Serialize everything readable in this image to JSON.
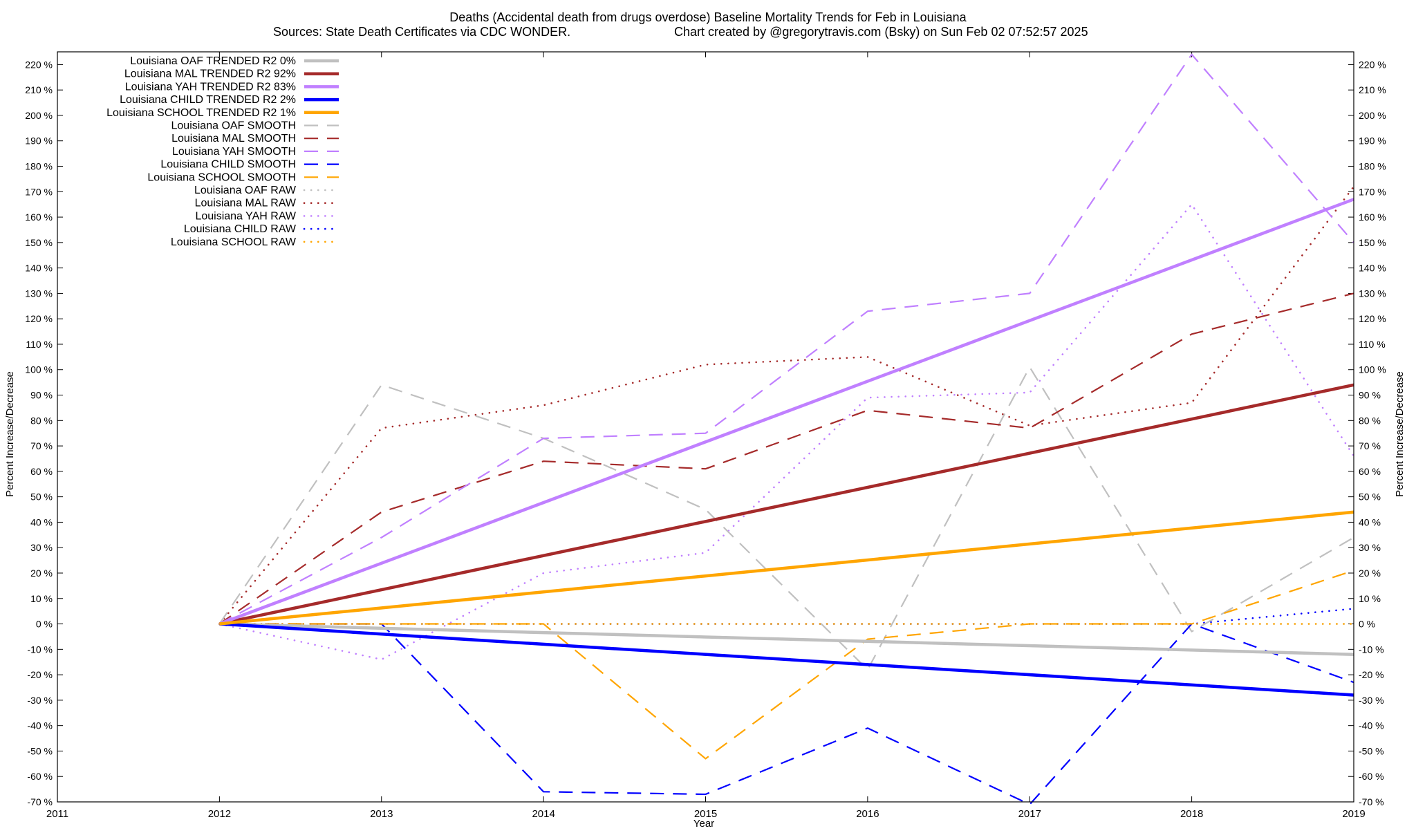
{
  "chart_data": {
    "type": "line",
    "title": "Deaths (Accidental death from drugs overdose)  Baseline Mortality Trends for Feb in Louisiana",
    "subtitle_left": "Sources: State Death Certificates via CDC WONDER.",
    "subtitle_right": "Chart created by @gregorytravis.com (Bsky) on Sun Feb 02 07:52:57 2025",
    "xlabel": "Year",
    "ylabel_left": "Percent Increase/Decrease",
    "ylabel_right": "Percent Increase/Decrease",
    "xlim": [
      2011,
      2019
    ],
    "ylim": [
      -70,
      225
    ],
    "x_ticks": [
      2011,
      2012,
      2013,
      2014,
      2015,
      2016,
      2017,
      2018,
      2019
    ],
    "y_ticks": [
      -70,
      -60,
      -50,
      -40,
      -30,
      -20,
      -10,
      0,
      10,
      20,
      30,
      40,
      50,
      60,
      70,
      80,
      90,
      100,
      110,
      120,
      130,
      140,
      150,
      160,
      170,
      180,
      190,
      200,
      210,
      220
    ],
    "y_tick_suffix": " %",
    "grid": false,
    "legend_position": "top-left",
    "series": [
      {
        "name": "Louisiana OAF TRENDED R2  0%",
        "style": "trend",
        "color": "#c0c0c0",
        "x": [
          2012,
          2019
        ],
        "y": [
          0,
          -12
        ]
      },
      {
        "name": "Louisiana MAL TRENDED R2  92%",
        "style": "trend",
        "color": "#a52a2a",
        "x": [
          2012,
          2019
        ],
        "y": [
          0,
          94
        ]
      },
      {
        "name": "Louisiana YAH TRENDED R2  83%",
        "style": "trend",
        "color": "#c080ff",
        "x": [
          2012,
          2019
        ],
        "y": [
          0,
          167
        ]
      },
      {
        "name": "Louisiana CHILD TRENDED R2  2%",
        "style": "trend",
        "color": "#0000ff",
        "x": [
          2012,
          2019
        ],
        "y": [
          0,
          -28
        ]
      },
      {
        "name": "Louisiana SCHOOL TRENDED R2  1%",
        "style": "trend",
        "color": "#ffa500",
        "x": [
          2012,
          2019
        ],
        "y": [
          0,
          44
        ]
      },
      {
        "name": "Louisiana OAF SMOOTH",
        "style": "smooth",
        "color": "#c0c0c0",
        "x": [
          2012,
          2013,
          2014,
          2015,
          2016,
          2017,
          2018,
          2019
        ],
        "y": [
          0,
          94,
          73,
          45,
          -18,
          101,
          -3,
          34
        ]
      },
      {
        "name": "Louisiana MAL SMOOTH",
        "style": "smooth",
        "color": "#a52a2a",
        "x": [
          2012,
          2013,
          2014,
          2015,
          2016,
          2017,
          2018,
          2019
        ],
        "y": [
          0,
          44,
          64,
          61,
          84,
          77,
          114,
          130
        ]
      },
      {
        "name": "Louisiana YAH SMOOTH",
        "style": "smooth",
        "color": "#c080ff",
        "x": [
          2012,
          2013,
          2014,
          2015,
          2016,
          2017,
          2018,
          2019
        ],
        "y": [
          0,
          34,
          73,
          75,
          123,
          130,
          224,
          150
        ]
      },
      {
        "name": "Louisiana CHILD SMOOTH",
        "style": "smooth",
        "color": "#0000ff",
        "x": [
          2012,
          2013,
          2014,
          2015,
          2016,
          2017,
          2018,
          2019
        ],
        "y": [
          0,
          0,
          -66,
          -67,
          -41,
          -71,
          0,
          -23
        ]
      },
      {
        "name": "Louisiana SCHOOL SMOOTH",
        "style": "smooth",
        "color": "#ffa500",
        "x": [
          2012,
          2013,
          2014,
          2015,
          2016,
          2017,
          2018,
          2019
        ],
        "y": [
          0,
          0,
          0,
          -53,
          -6,
          0,
          0,
          21
        ]
      },
      {
        "name": "Louisiana OAF RAW",
        "style": "raw",
        "color": "#c0c0c0",
        "x": [
          2012,
          2013,
          2014,
          2015,
          2016,
          2017,
          2018,
          2019
        ],
        "y": [
          0,
          0,
          0,
          0,
          0,
          0,
          0,
          0
        ]
      },
      {
        "name": "Louisiana MAL RAW",
        "style": "raw",
        "color": "#a52a2a",
        "x": [
          2012,
          2013,
          2014,
          2015,
          2016,
          2017,
          2018,
          2019
        ],
        "y": [
          0,
          77,
          86,
          102,
          105,
          78,
          87,
          172
        ]
      },
      {
        "name": "Louisiana YAH RAW",
        "style": "raw",
        "color": "#c080ff",
        "x": [
          2012,
          2013,
          2014,
          2015,
          2016,
          2017,
          2018,
          2019
        ],
        "y": [
          0,
          -14,
          20,
          28,
          89,
          91,
          165,
          66
        ]
      },
      {
        "name": "Louisiana CHILD RAW",
        "style": "raw",
        "color": "#0000ff",
        "x": [
          2012,
          2013,
          2014,
          2015,
          2016,
          2017,
          2018,
          2019
        ],
        "y": [
          0,
          0,
          0,
          0,
          0,
          0,
          0,
          6
        ]
      },
      {
        "name": "Louisiana SCHOOL RAW",
        "style": "raw",
        "color": "#ffa500",
        "x": [
          2012,
          2013,
          2014,
          2015,
          2016,
          2017,
          2018,
          2019
        ],
        "y": [
          0,
          0,
          0,
          0,
          0,
          0,
          0,
          0
        ]
      }
    ]
  }
}
